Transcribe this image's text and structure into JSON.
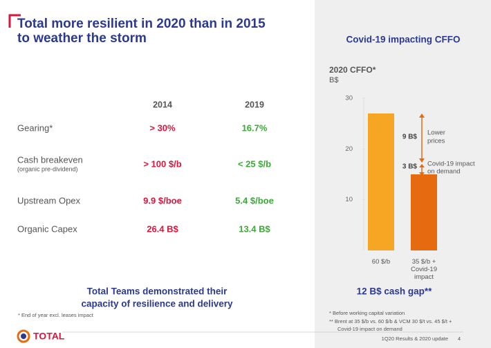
{
  "header": {
    "title": [
      "Total more resilient in 2020 than in 2015",
      "to weather the storm"
    ]
  },
  "table": {
    "columns": [
      "2014",
      "2019"
    ],
    "rows": [
      {
        "label": "Gearing*",
        "values": [
          "> 30%",
          "16.7%"
        ]
      },
      {
        "label": "Cash breakeven",
        "note": "(organic pre-dividend)",
        "values": [
          "> 100 $/b",
          "< 25 $/b"
        ]
      },
      {
        "label": "Upstream Opex",
        "values": [
          "9.9 $/boe",
          "5.4 $/boe"
        ]
      },
      {
        "label": "Organic Capex",
        "values": [
          "26.4 B$",
          "13.4 B$"
        ]
      }
    ]
  },
  "conclusion": [
    "Total Teams demonstrated their",
    "capacity of resilience and delivery"
  ],
  "footnote": "* End of year excl. leases impact",
  "logo": "TOTAL",
  "chart_data": {
    "type": "bar",
    "title": "Covid-19 impacting CFFO",
    "subtitle": "2020 CFFO*",
    "unit": "B$",
    "categories": [
      "60 $/b",
      "35 $/b + Covid-19 impact"
    ],
    "values": [
      27,
      15
    ],
    "colors": [
      "#f6a623",
      "#e66b10"
    ],
    "ylim": [
      0,
      30
    ],
    "yticks": [
      10,
      20,
      30
    ],
    "annotations": [
      {
        "label": "9 B$",
        "text": [
          "Lower",
          "prices"
        ]
      },
      {
        "label": "3 B$",
        "text": [
          "Covid-19 impact",
          "on demand"
        ]
      }
    ],
    "summary": "12 B$ cash gap**",
    "notes": [
      "*  Before working capital variation",
      "** Brent at 35 $/b vs. 60 $/b & VCM 30 $/t vs. 45 $/t +",
      "Covid-19 impact on demand"
    ]
  },
  "footer": {
    "text": "1Q20 Results & 2020 update",
    "page": "4"
  }
}
